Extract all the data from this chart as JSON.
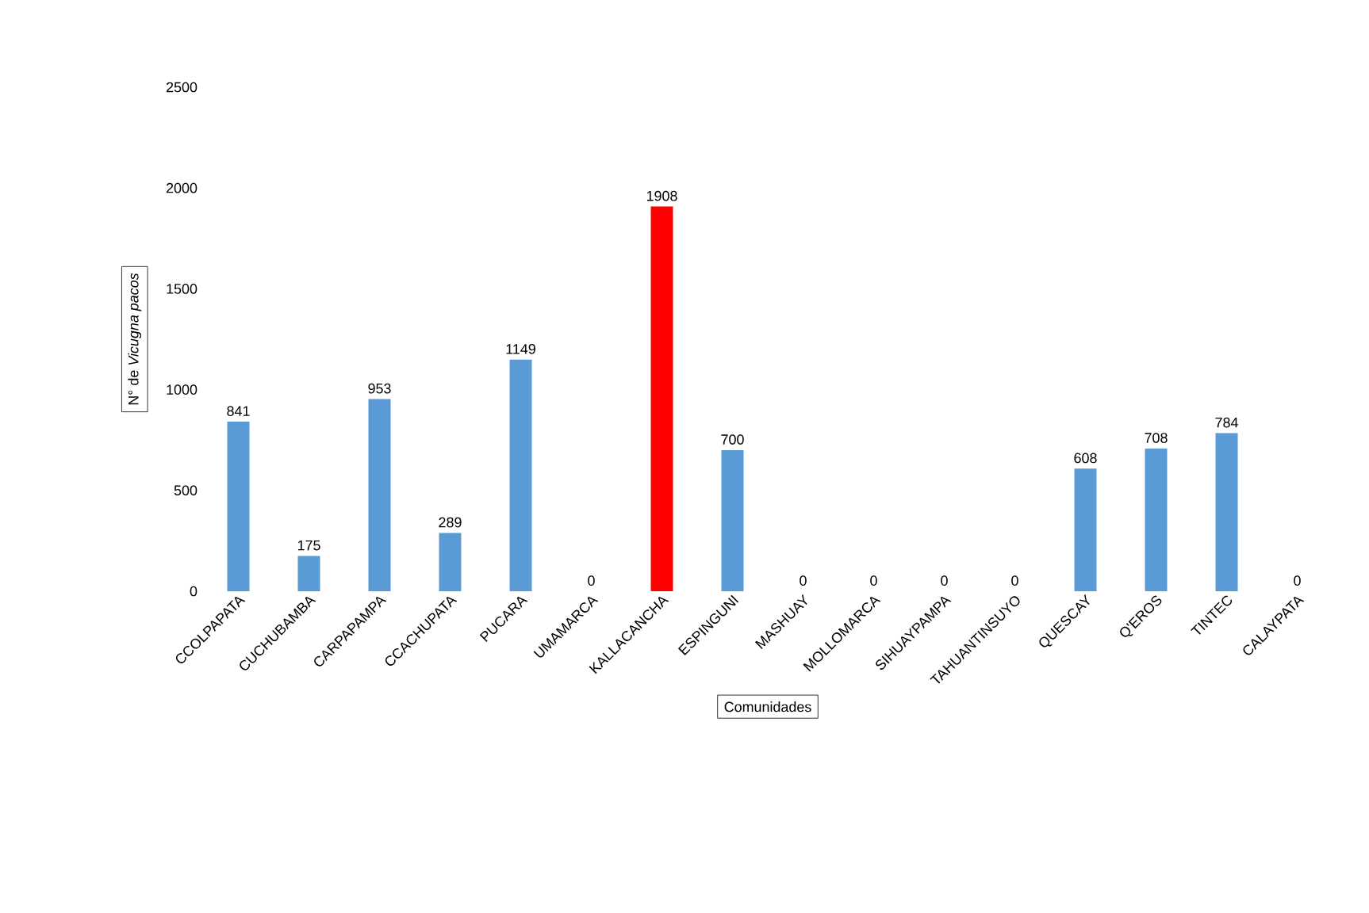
{
  "chart_data": {
    "type": "bar",
    "xlabel": "Comunidades",
    "ylabel": "N° de *Vicugna pacos*",
    "categories": [
      "CCOLPAPATA",
      "CUCHUBAMBA",
      "CARPAPAMPA",
      "CCACHUPATA",
      "PUCARA",
      "UMAMARCA",
      "KALLACANCHA",
      "ESPINGUNI",
      "MASHUAY",
      "MOLLOMARCA",
      "SIHUAYPAMPA",
      "TAHUANTINSUYO",
      "QUESCAY",
      "Q'EROS",
      "TINTEC",
      "CALAYPATA"
    ],
    "values": [
      841,
      175,
      953,
      289,
      1149,
      0,
      1908,
      700,
      0,
      0,
      0,
      0,
      608,
      708,
      784,
      0
    ],
    "colors": [
      "#5b9bd5",
      "#5b9bd5",
      "#5b9bd5",
      "#5b9bd5",
      "#5b9bd5",
      "#5b9bd5",
      "#ff0000",
      "#5b9bd5",
      "#5b9bd5",
      "#5b9bd5",
      "#5b9bd5",
      "#5b9bd5",
      "#5b9bd5",
      "#5b9bd5",
      "#5b9bd5",
      "#5b9bd5"
    ],
    "ylim": [
      0,
      2500
    ],
    "yticks": [
      0,
      500,
      1000,
      1500,
      2000,
      2500
    ],
    "data_labels": true
  }
}
